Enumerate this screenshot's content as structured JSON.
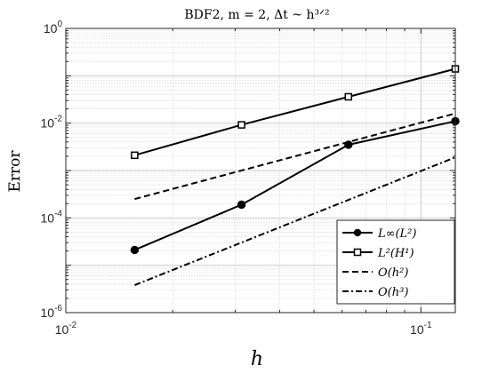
{
  "chart_data": {
    "type": "line",
    "title": "BDF2, m = 2, Δt ~ h³ᐟ²",
    "xlabel": "h",
    "ylabel": "Error",
    "xscale": "log",
    "yscale": "log",
    "xlim": [
      0.01,
      0.125
    ],
    "ylim": [
      1e-06,
      1
    ],
    "grid": true,
    "legend_position": "bottom-right",
    "x_ticks": [
      0.01,
      0.1
    ],
    "x_tick_labels": [
      {
        "base": "10",
        "exp": "-2"
      },
      {
        "base": "10",
        "exp": "-1"
      }
    ],
    "y_ticks": [
      1e-06,
      0.0001,
      0.01,
      1
    ],
    "y_tick_labels": [
      {
        "base": "10",
        "exp": "-6"
      },
      {
        "base": "10",
        "exp": "-4"
      },
      {
        "base": "10",
        "exp": "-2"
      },
      {
        "base": "10",
        "exp": "0"
      }
    ],
    "x": [
      0.015625,
      0.03125,
      0.0625,
      0.125
    ],
    "series": [
      {
        "name": "L∞(L²)",
        "marker": "circle",
        "dash": "solid",
        "values": [
          2.1e-05,
          0.00019,
          0.0035,
          0.011
        ]
      },
      {
        "name": "L²(H¹)",
        "marker": "square",
        "dash": "solid",
        "values": [
          0.0021,
          0.0092,
          0.036,
          0.14
        ]
      },
      {
        "name": "O(h²)",
        "marker": "none",
        "dash": "dashed",
        "x": [
          0.015625,
          0.125
        ],
        "values": [
          0.00025,
          0.016
        ]
      },
      {
        "name": "O(h³)",
        "marker": "none",
        "dash": "dashdot",
        "x": [
          0.015625,
          0.125
        ],
        "values": [
          3.8e-06,
          0.0019
        ]
      }
    ]
  }
}
